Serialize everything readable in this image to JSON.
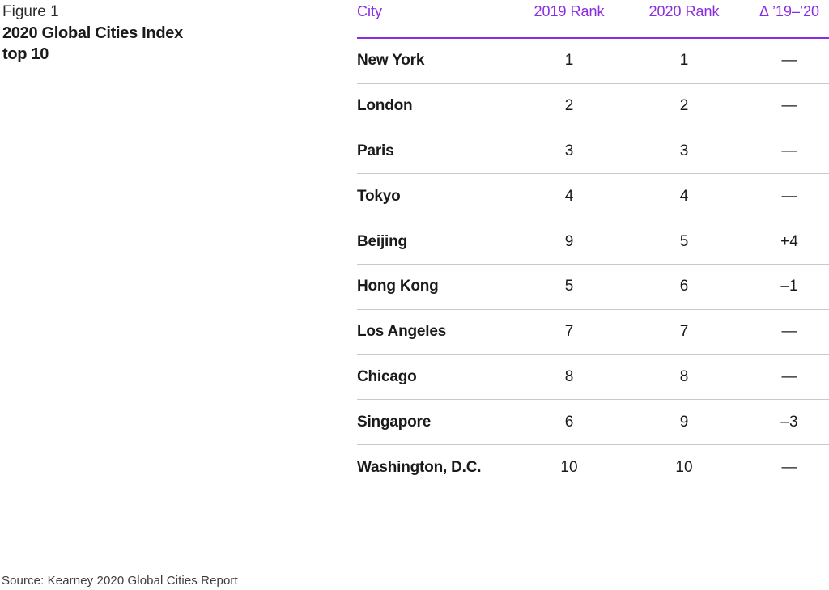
{
  "figure": {
    "label": "Figure 1",
    "title_line1": "2020 Global Cities Index",
    "title_line2": "top 10"
  },
  "chart_data": {
    "type": "table",
    "title": "2020 Global Cities Index top 10",
    "columns": [
      "City",
      "2019 Rank",
      "2020 Rank",
      "Δ ’19–’20"
    ],
    "rows": [
      {
        "city": "New York",
        "rank2019": "1",
        "rank2020": "1",
        "delta": "—"
      },
      {
        "city": "London",
        "rank2019": "2",
        "rank2020": "2",
        "delta": "—"
      },
      {
        "city": "Paris",
        "rank2019": "3",
        "rank2020": "3",
        "delta": "—"
      },
      {
        "city": "Tokyo",
        "rank2019": "4",
        "rank2020": "4",
        "delta": "—"
      },
      {
        "city": "Beijing",
        "rank2019": "9",
        "rank2020": "5",
        "delta": "+4"
      },
      {
        "city": "Hong Kong",
        "rank2019": "5",
        "rank2020": "6",
        "delta": "–1"
      },
      {
        "city": "Los Angeles",
        "rank2019": "7",
        "rank2020": "7",
        "delta": "—"
      },
      {
        "city": "Chicago",
        "rank2019": "8",
        "rank2020": "8",
        "delta": "—"
      },
      {
        "city": "Singapore",
        "rank2019": "6",
        "rank2020": "9",
        "delta": "–3"
      },
      {
        "city": "Washington, D.C.",
        "rank2019": "10",
        "rank2020": "10",
        "delta": "—"
      }
    ],
    "layout": {
      "header_color": "accent",
      "grid": "horizontal-separators"
    }
  },
  "source_note": "Source: Kearney 2020 Global Cities Report",
  "colors": {
    "accent": "#8A2BE2",
    "text": "#1a1a1a",
    "separator": "#c9c9c9",
    "muted": "#3d3d3d"
  }
}
